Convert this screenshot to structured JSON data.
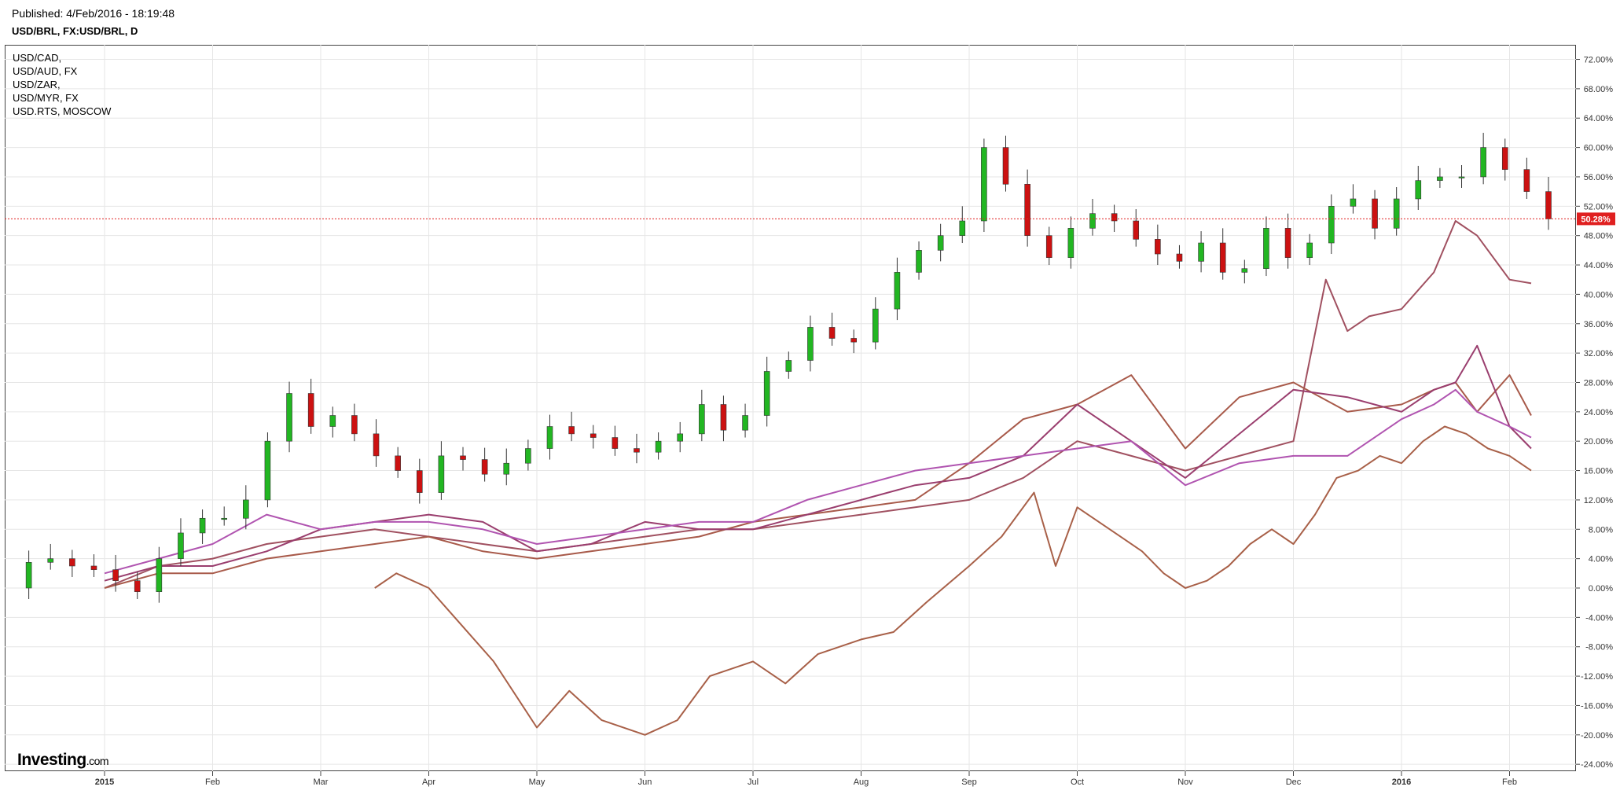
{
  "header": {
    "published": "Published: 4/Feb/2016 - 18:19:48",
    "symbol": "USD/BRL, FX:USD/BRL, D"
  },
  "logo": {
    "name": "Investing",
    "suffix": ".com"
  },
  "chart_data": {
    "type": "line",
    "title": "",
    "ylabel": "",
    "xlabel": "",
    "ylim": [
      -26,
      74
    ],
    "x_ticks": [
      "2015",
      "Feb",
      "Mar",
      "Apr",
      "May",
      "Jun",
      "Jul",
      "Aug",
      "Sep",
      "Oct",
      "Nov",
      "Dec",
      "2016",
      "Feb"
    ],
    "y_ticks": [
      "72.00%",
      "68.00%",
      "64.00%",
      "60.00%",
      "56.00%",
      "52.00%",
      "48.00%",
      "44.00%",
      "40.00%",
      "36.00%",
      "32.00%",
      "28.00%",
      "24.00%",
      "20.00%",
      "16.00%",
      "12.00%",
      "8.00%",
      "4.00%",
      "0.00%",
      "-4.00%",
      "-8.00%",
      "-12.00%",
      "-16.00%",
      "-20.00%",
      "-24.00%"
    ],
    "grid": true,
    "legend_position": "top-left",
    "last_value": 50.28,
    "last_value_label": "50.28%",
    "colors": {
      "up": "#22b622",
      "down": "#cc1111",
      "current_line": "#e02020",
      "grid": "#e6e6e6"
    },
    "main_series": {
      "name": "USD/BRL, FX:USD/BRL, D",
      "weekly_close_pct": [
        0.0,
        3.5,
        4.0,
        3.0,
        2.5,
        1.0,
        -0.5,
        4.0,
        7.5,
        9.5,
        9.5,
        12.0,
        20.0,
        26.5,
        22.0,
        23.5,
        21.0,
        18.0,
        16.0,
        13.0,
        18.0,
        17.5,
        15.5,
        17.0,
        19.0,
        22.0,
        21.0,
        20.5,
        19.0,
        18.5,
        20.0,
        21.0,
        25.0,
        21.5,
        23.5,
        29.5,
        31.0,
        35.5,
        34.0,
        33.5,
        38.0,
        43.0,
        46.0,
        48.0,
        50.0,
        60.0,
        55.0,
        48.0,
        45.0,
        49.0,
        51.0,
        50.0,
        47.5,
        45.5,
        44.5,
        47.0,
        43.0,
        43.5,
        49.0,
        45.0,
        47.0,
        52.0,
        53.0,
        49.0,
        53.0,
        55.5,
        56.0,
        56.0,
        60.0,
        57.0,
        54.0,
        50.28
      ]
    },
    "series": [
      {
        "name": "USD/CAD,",
        "color": "#a05060",
        "x": [
          0,
          0.5,
          1.0,
          1.5,
          2.0,
          2.5,
          3.0,
          3.5,
          4.0,
          4.5,
          5.0,
          5.5,
          6.0,
          6.5,
          7.0,
          7.5,
          8.0,
          8.5,
          9.0,
          9.5,
          10.0,
          10.5,
          11.0,
          11.3,
          11.5,
          11.7,
          12.0,
          12.3,
          12.5,
          12.7,
          13.0,
          13.2
        ],
        "y": [
          0,
          3,
          4,
          6,
          7,
          8,
          7,
          6,
          5,
          6,
          7,
          8,
          8,
          9,
          10,
          11,
          12,
          15,
          20,
          18,
          16,
          18,
          20,
          42,
          35,
          37,
          38,
          43,
          50,
          48,
          42,
          41.5
        ]
      },
      {
        "name": "USD/AUD, FX",
        "color": "#a85a4a",
        "x": [
          0,
          0.5,
          1.0,
          1.5,
          2.0,
          2.5,
          3.0,
          3.5,
          4.0,
          4.5,
          5.0,
          5.5,
          6.0,
          6.5,
          7.0,
          7.5,
          8.0,
          8.5,
          9.0,
          9.5,
          10.0,
          10.5,
          11.0,
          11.5,
          12.0,
          12.3,
          12.5,
          12.7,
          13.0,
          13.2
        ],
        "y": [
          0,
          2,
          2,
          4,
          5,
          6,
          7,
          5,
          4,
          5,
          6,
          7,
          9,
          10,
          11,
          12,
          17,
          23,
          25,
          29,
          19,
          26,
          28,
          24,
          25,
          27,
          28,
          24,
          29,
          23.5
        ]
      },
      {
        "name": "USD/ZAR,",
        "color": "#9a3e6e",
        "x": [
          0,
          0.5,
          1.0,
          1.5,
          2.0,
          2.5,
          3.0,
          3.5,
          4.0,
          4.5,
          5.0,
          5.5,
          6.0,
          6.5,
          7.0,
          7.5,
          8.0,
          8.5,
          9.0,
          9.5,
          10.0,
          10.5,
          11.0,
          11.5,
          12.0,
          12.3,
          12.5,
          12.7,
          13.0,
          13.2
        ],
        "y": [
          1,
          3,
          3,
          5,
          8,
          9,
          10,
          9,
          5,
          6,
          9,
          8,
          8,
          10,
          12,
          14,
          15,
          18,
          25,
          20,
          15,
          21,
          27,
          26,
          24,
          27,
          28,
          33,
          22,
          19
        ]
      },
      {
        "name": "USD/MYR, FX",
        "color": "#b054b0",
        "x": [
          0,
          0.5,
          1.0,
          1.5,
          2.0,
          2.5,
          3.0,
          3.5,
          4.0,
          4.5,
          5.0,
          5.5,
          6.0,
          6.5,
          7.0,
          7.5,
          8.0,
          8.5,
          9.0,
          9.5,
          10.0,
          10.5,
          11.0,
          11.5,
          12.0,
          12.3,
          12.5,
          12.7,
          13.0,
          13.2
        ],
        "y": [
          2,
          4,
          6,
          10,
          8,
          9,
          9,
          8,
          6,
          7,
          8,
          9,
          9,
          12,
          14,
          16,
          17,
          18,
          19,
          20,
          14,
          17,
          18,
          18,
          23,
          25,
          27,
          24,
          22,
          20.5
        ]
      },
      {
        "name": "USD.RTS, MOSCOW",
        "color": "#a86048",
        "x": [
          2.5,
          2.7,
          3.0,
          3.3,
          3.6,
          4.0,
          4.3,
          4.6,
          5.0,
          5.3,
          5.6,
          6.0,
          6.3,
          6.6,
          7.0,
          7.3,
          7.6,
          8.0,
          8.3,
          8.6,
          8.8,
          9.0,
          9.2,
          9.4,
          9.6,
          9.8,
          10.0,
          10.2,
          10.4,
          10.6,
          10.8,
          11.0,
          11.2,
          11.4,
          11.6,
          11.8,
          12.0,
          12.2,
          12.4,
          12.6,
          12.8,
          13.0,
          13.2
        ],
        "y": [
          0,
          2,
          0,
          -5,
          -10,
          -19,
          -14,
          -18,
          -20,
          -18,
          -12,
          -10,
          -13,
          -9,
          -7,
          -6,
          -2,
          3,
          7,
          13,
          3,
          11,
          9,
          7,
          5,
          2,
          0,
          1,
          3,
          6,
          8,
          6,
          10,
          15,
          16,
          18,
          17,
          20,
          22,
          21,
          19,
          18,
          16
        ]
      }
    ]
  }
}
